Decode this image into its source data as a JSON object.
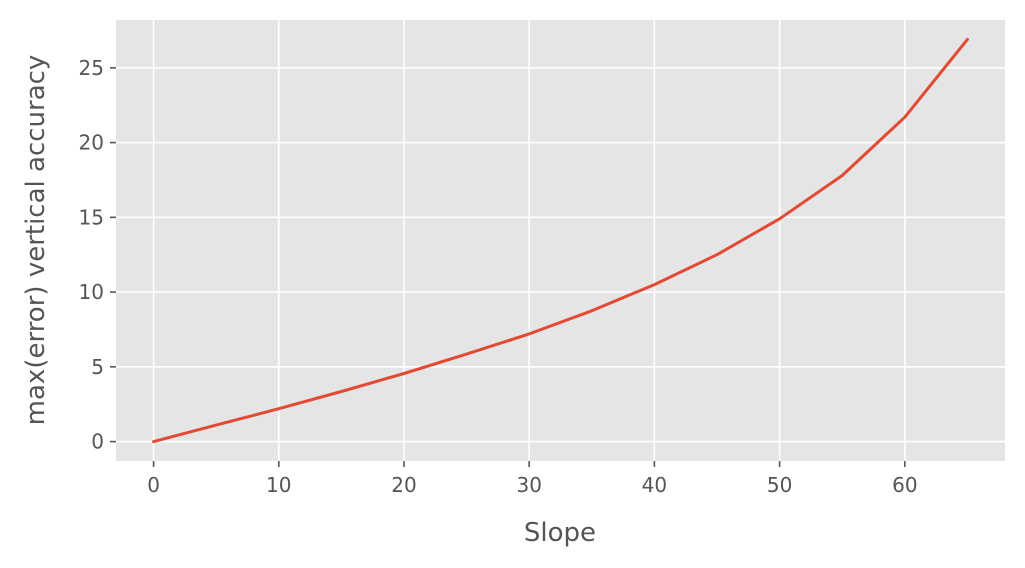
{
  "chart_data": {
    "type": "line",
    "title": "",
    "xlabel": "Slope",
    "ylabel": "max(error) vertical accuracy",
    "xlim": [
      -3,
      68
    ],
    "ylim": [
      -1.3,
      28.2
    ],
    "xticks": [
      0,
      10,
      20,
      30,
      40,
      50,
      60
    ],
    "yticks": [
      0,
      5,
      10,
      15,
      20,
      25
    ],
    "grid": true,
    "colors": {
      "background": "#e5e5e5",
      "line": "#e24a33",
      "grid": "#ffffff",
      "text": "#555555"
    },
    "series": [
      {
        "x": [
          0,
          5,
          10,
          15,
          20,
          25,
          30,
          35,
          40,
          45,
          50,
          55,
          60,
          65
        ],
        "y": [
          0,
          1.1,
          2.2,
          3.35,
          4.55,
          5.85,
          7.2,
          8.75,
          10.5,
          12.5,
          14.9,
          17.8,
          21.7,
          26.9
        ]
      }
    ]
  }
}
